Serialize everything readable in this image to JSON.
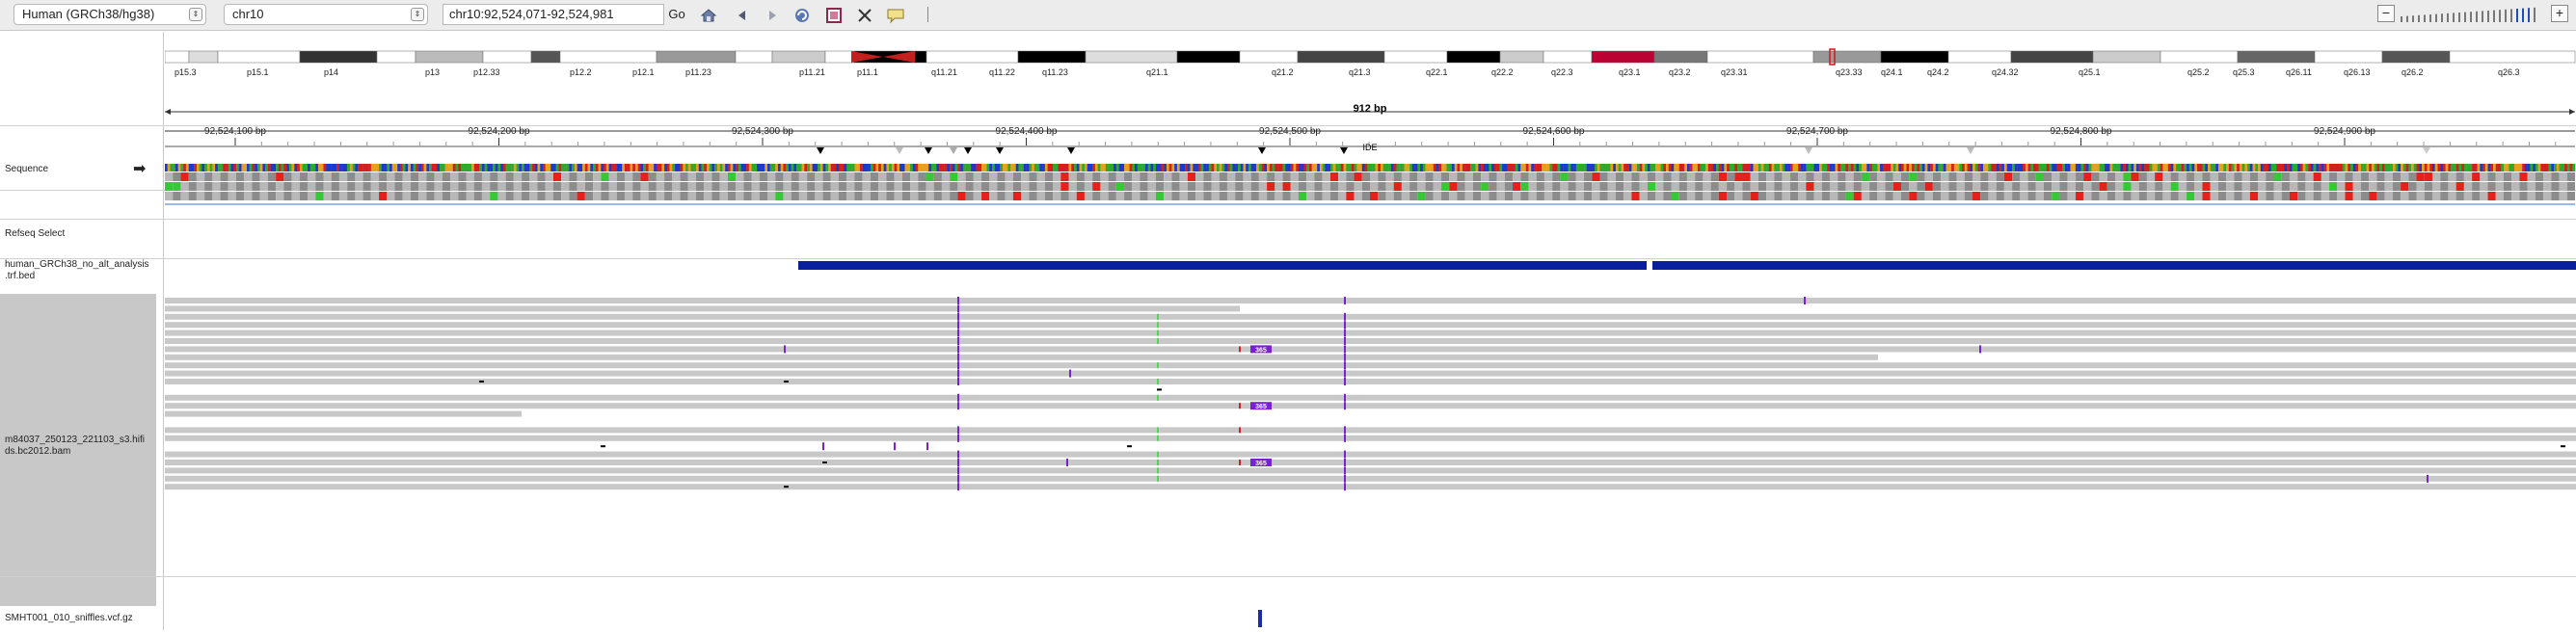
{
  "toolbar": {
    "genome": "Human (GRCh38/hg38)",
    "chromosome": "chr10",
    "locus": "chr10:92,524,071-92,524,981",
    "go_label": "Go",
    "icons": [
      "home-icon",
      "back-icon",
      "forward-icon",
      "refresh-icon",
      "roi-icon",
      "fit-icon",
      "popup-text-icon"
    ],
    "zoom_minus": "−",
    "zoom_plus": "+"
  },
  "ideogram": {
    "bands": [
      "p15.3",
      "p15.1",
      "p14",
      "p13",
      "p12.33",
      "p12.2",
      "p12.1",
      "p11.23",
      "p11.21",
      "p11.1",
      "q11.21",
      "q11.22",
      "q11.23",
      "q21.1",
      "q21.2",
      "q21.3",
      "q22.1",
      "q22.2",
      "q22.3",
      "q23.1",
      "q23.2",
      "q23.31",
      "q23.33",
      "q24.1",
      "q24.2",
      "q24.32",
      "q25.1",
      "q25.2",
      "q25.3",
      "q26.11",
      "q26.13",
      "q26.2",
      "q26.3"
    ]
  },
  "ruler": {
    "span_label": "912 bp",
    "ticks": [
      "92,524,100 bp",
      "92,524,200 bp",
      "92,524,300 bp",
      "92,524,400 bp",
      "92,524,500 bp",
      "92,524,600 bp",
      "92,524,700 bp",
      "92,524,800 bp",
      "92,524,900 bp"
    ]
  },
  "tracks": {
    "sequence": "Sequence",
    "refseq": "Refseq Select",
    "bed": "human_GRCh38_no_alt_analysis .trf.bed",
    "bed_feature_label": "IDE",
    "bam": "m84037_250123_221103_s3.hifi ds.bc2012.bam",
    "vcf": "SMHT001_010_sniffles.vcf.gz"
  },
  "reads": {
    "insertion_label": "365",
    "color_read": "#c8c8c8",
    "color_ins": "#7b1fd6"
  },
  "colors": {
    "bed_feature": "#0a1fa0",
    "vcf_variant": "#1a2ea0",
    "stop_codon": "#e8201c",
    "start_codon": "#37c837"
  }
}
